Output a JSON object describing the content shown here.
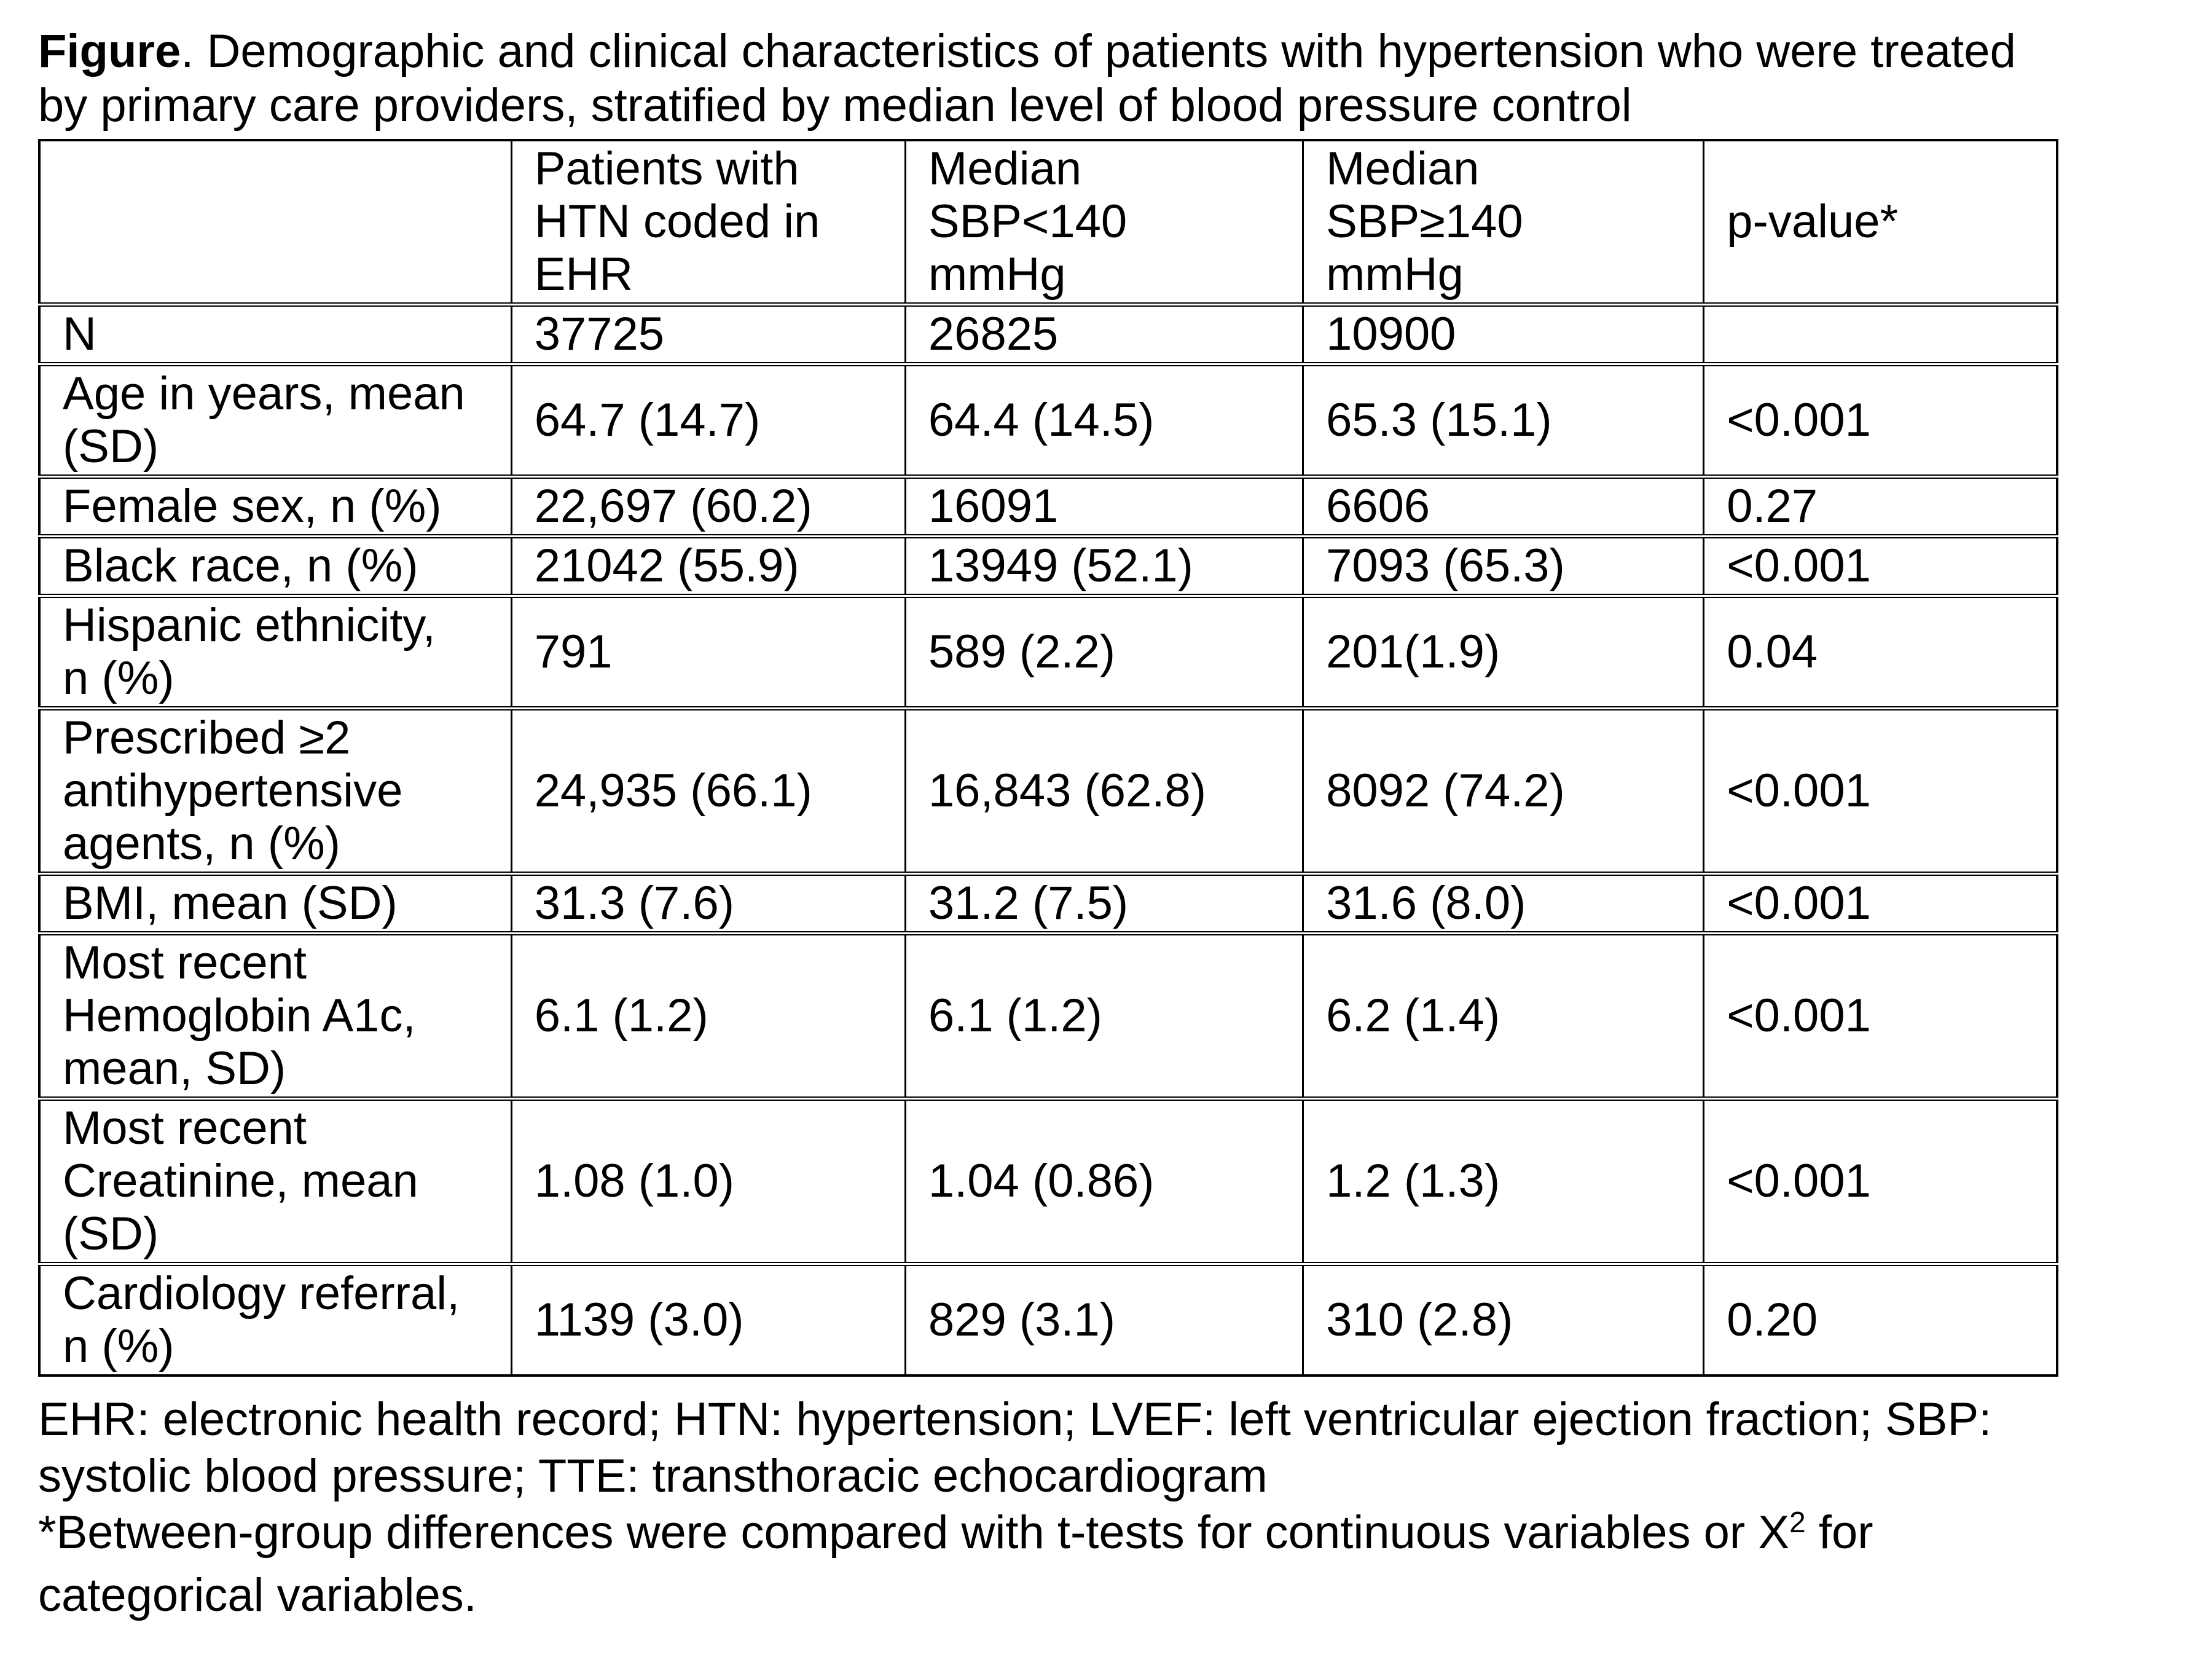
{
  "page": {
    "background": "#ffffff",
    "text_color": "#000000",
    "border_color": "#000000"
  },
  "title": {
    "line1_bold": "Figure",
    "line1_rest": ". Demographic and clinical characteristics of patients with hypertension who were treated",
    "line2": "by primary care providers, stratified by median level of blood pressure control"
  },
  "table": {
    "header": {
      "col0_lines": [],
      "col1_lines": [
        "Patients with",
        "HTN coded in",
        "EHR"
      ],
      "col2_lines": [
        "Median",
        "SBP<140",
        "mmHg"
      ],
      "col3_lines": [
        "Median",
        "SBP≥140",
        "mmHg"
      ],
      "col4_lines": [
        "p-value*"
      ]
    },
    "rows": [
      {
        "label_lines": [
          "N"
        ],
        "values": [
          "37725",
          "26825",
          "10900",
          ""
        ]
      },
      {
        "label_lines": [
          "Age in years, mean",
          "(SD)"
        ],
        "values": [
          "64.7 (14.7)",
          "64.4 (14.5)",
          "65.3 (15.1)",
          "<0.001"
        ]
      },
      {
        "label_lines": [
          "Female sex, n (%)"
        ],
        "values": [
          "22,697 (60.2)",
          "16091",
          "6606",
          "0.27"
        ]
      },
      {
        "label_lines": [
          "Black race, n (%)"
        ],
        "values": [
          "21042 (55.9)",
          "13949 (52.1)",
          "7093 (65.3)",
          "<0.001"
        ]
      },
      {
        "label_lines": [
          "Hispanic ethnicity,",
          "n (%)"
        ],
        "values": [
          "791",
          "589 (2.2)",
          "201(1.9)",
          "0.04"
        ]
      },
      {
        "label_lines": [
          "Prescribed ≥2",
          "antihypertensive",
          "agents, n (%)"
        ],
        "values": [
          "24,935 (66.1)",
          "16,843 (62.8)",
          "8092 (74.2)",
          "<0.001"
        ]
      },
      {
        "label_lines": [
          "BMI, mean (SD)"
        ],
        "values": [
          "31.3 (7.6)",
          "31.2 (7.5)",
          "31.6 (8.0)",
          "<0.001"
        ]
      },
      {
        "label_lines": [
          "Most recent",
          "Hemoglobin A1c,",
          "mean, SD)"
        ],
        "values": [
          "6.1 (1.2)",
          "6.1 (1.2)",
          "6.2 (1.4)",
          "<0.001"
        ]
      },
      {
        "label_lines": [
          "Most recent",
          "Creatinine, mean",
          "(SD)"
        ],
        "values": [
          "1.08 (1.0)",
          "1.04 (0.86)",
          "1.2 (1.3)",
          "<0.001"
        ]
      },
      {
        "label_lines": [
          "Cardiology referral,",
          "n (%)"
        ],
        "values": [
          "1139 (3.0)",
          "829 (3.1)",
          "310 (2.8)",
          "0.20"
        ]
      }
    ]
  },
  "footnotes": {
    "abbrev_line1": "EHR: electronic health record; HTN: hypertension; LVEF: left ventricular ejection fraction; SBP:",
    "abbrev_line2": "systolic blood pressure; TTE: transthoracic echocardiogram",
    "star_line1_pre": "*Between-group differences were compared with t-tests for continuous variables or X",
    "star_sup": "2",
    "star_line1_post": " for",
    "star_line2": "categorical variables."
  }
}
